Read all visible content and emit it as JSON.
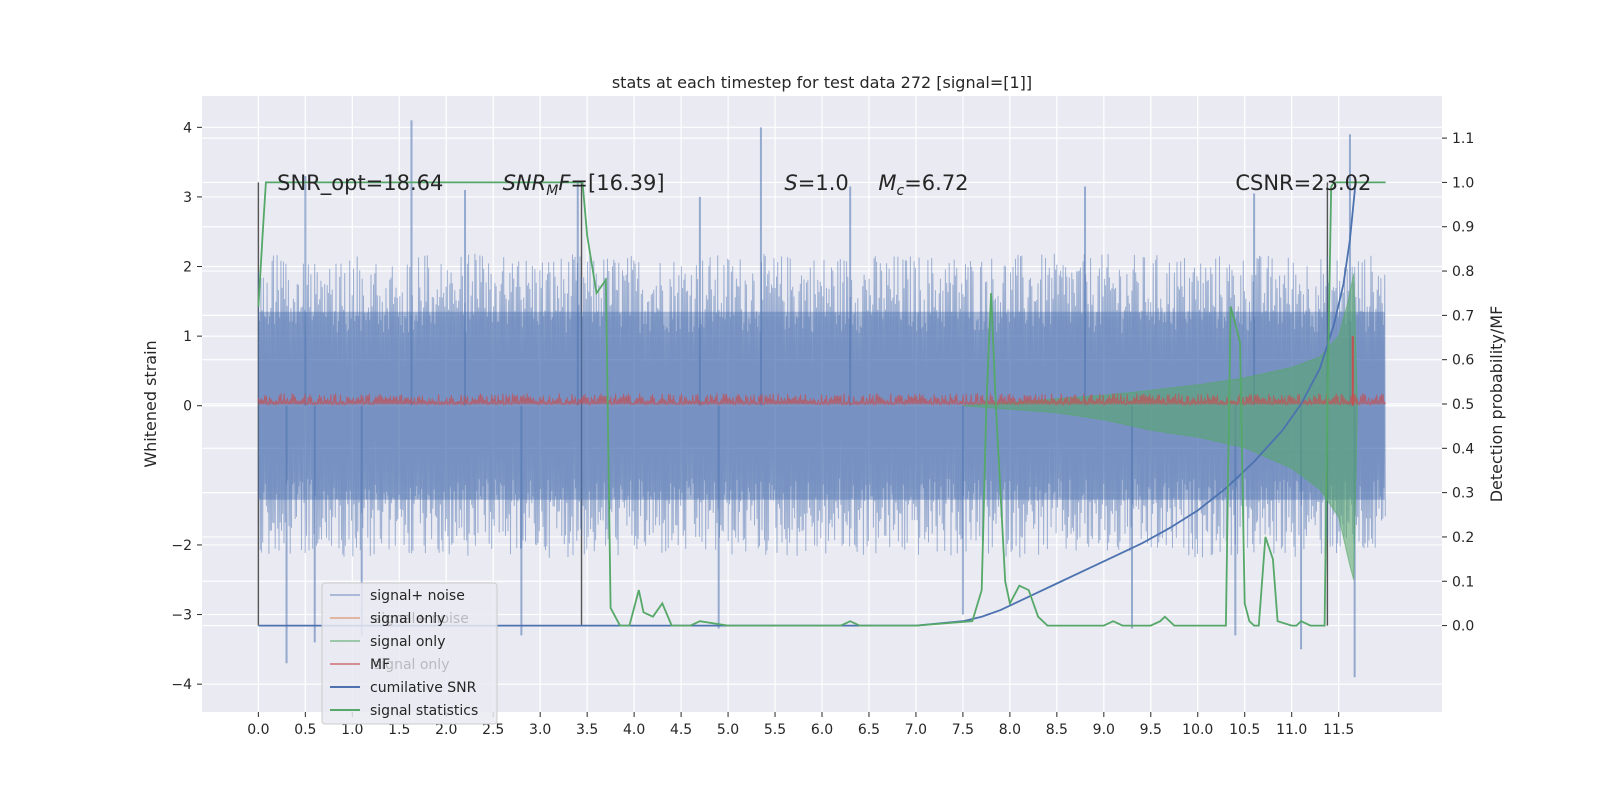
{
  "chart_data": {
    "type": "line",
    "title": "stats at each timestep for test data 272 [signal=[1]]",
    "xlabel": "",
    "ylabel": "Whitened strain",
    "y2label": "Detection probability/MF",
    "xlim": [
      -0.6,
      12.6
    ],
    "ylim": [
      -4.4,
      4.45
    ],
    "y2lim": [
      -0.195,
      1.195
    ],
    "x_ticks": [
      "0.0",
      "0.5",
      "1.0",
      "1.5",
      "2.0",
      "2.5",
      "3.0",
      "3.5",
      "4.0",
      "4.5",
      "5.0",
      "5.5",
      "6.0",
      "6.5",
      "7.0",
      "7.5",
      "8.0",
      "8.5",
      "9.0",
      "9.5",
      "10.0",
      "10.5",
      "11.0",
      "11.5"
    ],
    "y_ticks": [
      "4",
      "3",
      "2",
      "1",
      "0",
      "−2",
      "−3",
      "−4"
    ],
    "y2_ticks": [
      "1.1",
      "1.0",
      "0.9",
      "0.8",
      "0.7",
      "0.6",
      "0.5",
      "0.4",
      "0.3",
      "0.2",
      "0.1",
      "0.0"
    ],
    "grid": true,
    "legend_position": "lower-left",
    "legend": [
      "signal+ noise",
      "signal only",
      "signal only",
      "MF",
      "cumilative SNR",
      "signal statistics"
    ],
    "legend_ghost_text": [
      "signal+ noise",
      "signal only"
    ],
    "annotations": [
      {
        "x": 0.2,
        "y": 3.2,
        "text": "SNR_opt=18.64"
      },
      {
        "x": 2.6,
        "y": 3.2,
        "text": "SNR_MF=[16.39]",
        "math_base": "SNR",
        "math_sub": "M",
        "math_rest": "F=[16.39]"
      },
      {
        "x": 5.6,
        "y": 3.2,
        "text": "S=1.0",
        "math_base": "S",
        "math_rest": "=1.0"
      },
      {
        "x": 6.6,
        "y": 3.2,
        "text": "M_c=6.72",
        "math_base": "M",
        "math_sub": "c",
        "math_rest": "=6.72"
      },
      {
        "x": 10.4,
        "y": 3.2,
        "text": "CSNR=23.02"
      }
    ],
    "vertical_lines": [
      {
        "x": 0.0,
        "y2_from": 0.0,
        "y2_to": 1.0
      },
      {
        "x": 3.44,
        "y2_from": 0.0,
        "y2_to": 1.0
      },
      {
        "x": 11.38,
        "y2_from": 0.0,
        "y2_to": 1.0
      }
    ],
    "series": [
      {
        "name": "signal+ noise",
        "color": "#4c72b0",
        "axis": "left",
        "style": "noise_band",
        "x_range": [
          0.0,
          11.99
        ],
        "typical_range": [
          -1.9,
          1.9
        ],
        "spikes": [
          [
            1.63,
            4.1
          ],
          [
            5.35,
            4.0
          ],
          [
            11.62,
            3.9
          ],
          [
            0.5,
            3.3
          ],
          [
            2.2,
            3.1
          ],
          [
            3.4,
            3.2
          ],
          [
            4.7,
            3.0
          ],
          [
            6.3,
            3.15
          ],
          [
            8.8,
            3.15
          ],
          [
            10.6,
            3.05
          ],
          [
            0.3,
            -3.7
          ],
          [
            1.1,
            -3.3
          ],
          [
            2.8,
            -3.3
          ],
          [
            4.9,
            -3.2
          ],
          [
            9.3,
            -3.2
          ],
          [
            10.4,
            -3.3
          ],
          [
            11.1,
            -3.5
          ],
          [
            11.67,
            -3.9
          ],
          [
            0.6,
            -3.4
          ],
          [
            7.5,
            -3.0
          ]
        ]
      },
      {
        "name": "signal only",
        "color": "#55a868",
        "axis": "left",
        "style": "chirp_band",
        "envelope": [
          [
            7.5,
            0.0
          ],
          [
            8.0,
            0.05
          ],
          [
            8.5,
            0.1
          ],
          [
            9.0,
            0.15
          ],
          [
            9.5,
            0.22
          ],
          [
            10.0,
            0.3
          ],
          [
            10.5,
            0.4
          ],
          [
            11.0,
            0.55
          ],
          [
            11.3,
            0.7
          ],
          [
            11.5,
            1.0
          ],
          [
            11.6,
            1.5
          ],
          [
            11.66,
            1.9
          ],
          [
            11.7,
            0.0
          ]
        ],
        "envelope_low": [
          [
            7.5,
            0.0
          ],
          [
            8.0,
            -0.05
          ],
          [
            8.5,
            -0.1
          ],
          [
            9.0,
            -0.2
          ],
          [
            9.5,
            -0.35
          ],
          [
            10.0,
            -0.45
          ],
          [
            10.5,
            -0.6
          ],
          [
            11.0,
            -0.9
          ],
          [
            11.3,
            -1.2
          ],
          [
            11.5,
            -1.6
          ],
          [
            11.62,
            -2.3
          ],
          [
            11.66,
            -2.5
          ],
          [
            11.7,
            0.0
          ]
        ]
      },
      {
        "name": "MF",
        "color": "#c44e52",
        "axis": "left",
        "style": "thin_band",
        "x_range": [
          0.0,
          11.99
        ],
        "low": 0.03,
        "high": 0.18,
        "peak": [
          11.65,
          1.0
        ]
      },
      {
        "name": "cumilative SNR",
        "color": "#4c72b0",
        "axis": "right",
        "x": [
          0.0,
          7.0,
          7.5,
          7.7,
          7.9,
          8.1,
          8.3,
          8.5,
          8.8,
          9.1,
          9.4,
          9.7,
          10.0,
          10.3,
          10.6,
          10.9,
          11.1,
          11.3,
          11.45,
          11.55,
          11.62,
          11.68
        ],
        "y": [
          0.0,
          0.0,
          0.01,
          0.02,
          0.035,
          0.055,
          0.075,
          0.095,
          0.125,
          0.155,
          0.185,
          0.22,
          0.26,
          0.31,
          0.37,
          0.44,
          0.5,
          0.58,
          0.68,
          0.77,
          0.87,
          1.0
        ]
      },
      {
        "name": "signal statistics",
        "color": "#55a868",
        "axis": "right",
        "x": [
          0.0,
          0.05,
          0.08,
          0.15,
          3.3,
          3.45,
          3.5,
          3.6,
          3.7,
          3.75,
          3.85,
          3.95,
          4.05,
          4.1,
          4.2,
          4.3,
          4.4,
          4.6,
          4.7,
          5.0,
          6.2,
          6.3,
          6.4,
          7.0,
          7.6,
          7.7,
          7.75,
          7.8,
          7.85,
          7.95,
          8.0,
          8.05,
          8.1,
          8.2,
          8.25,
          8.3,
          8.4,
          9.0,
          9.1,
          9.2,
          9.5,
          9.6,
          9.65,
          9.75,
          10.2,
          10.3,
          10.35,
          10.45,
          10.5,
          10.55,
          10.6,
          10.65,
          10.72,
          10.8,
          10.85,
          11.0,
          11.05,
          11.1,
          11.2,
          11.3,
          11.35,
          11.38,
          11.42,
          11.45,
          11.5,
          12.0
        ],
        "y": [
          0.72,
          0.9,
          1.0,
          1.0,
          1.0,
          1.0,
          0.88,
          0.75,
          0.78,
          0.04,
          0.0,
          0.0,
          0.08,
          0.03,
          0.02,
          0.05,
          0.0,
          0.0,
          0.01,
          0.0,
          0.0,
          0.01,
          0.0,
          0.0,
          0.01,
          0.08,
          0.5,
          0.75,
          0.5,
          0.1,
          0.05,
          0.07,
          0.09,
          0.08,
          0.05,
          0.02,
          0.0,
          0.0,
          0.01,
          0.0,
          0.0,
          0.01,
          0.02,
          0.0,
          0.0,
          0.0,
          0.72,
          0.64,
          0.05,
          0.01,
          0.0,
          0.0,
          0.2,
          0.15,
          0.01,
          0.0,
          0.0,
          0.01,
          0.0,
          0.0,
          0.0,
          0.5,
          0.99,
          1.0,
          1.0,
          1.0
        ]
      }
    ]
  }
}
